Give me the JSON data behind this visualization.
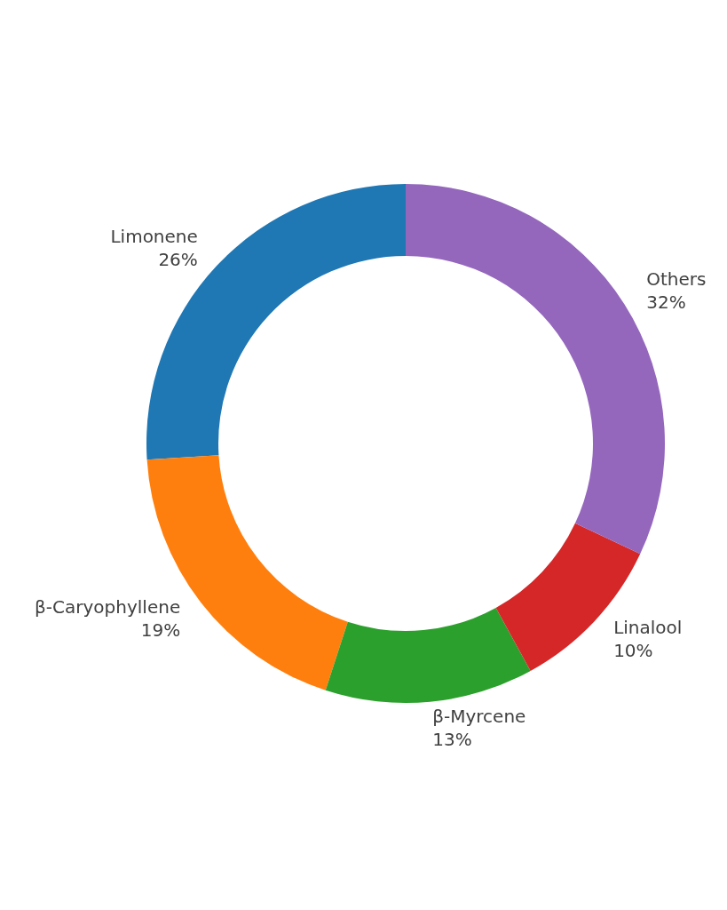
{
  "chart_data": {
    "type": "donut",
    "categories": [
      "Limonene",
      "β-Caryophyllene",
      "β-Myrcene",
      "Linalool",
      "Others"
    ],
    "values": [
      26,
      19,
      13,
      10,
      32
    ],
    "colors": [
      "#1f77b4",
      "#ff7f0e",
      "#2ca02c",
      "#d62728",
      "#9467bd"
    ],
    "value_labels": [
      "26%",
      "19%",
      "13%",
      "10%",
      "32%"
    ]
  }
}
